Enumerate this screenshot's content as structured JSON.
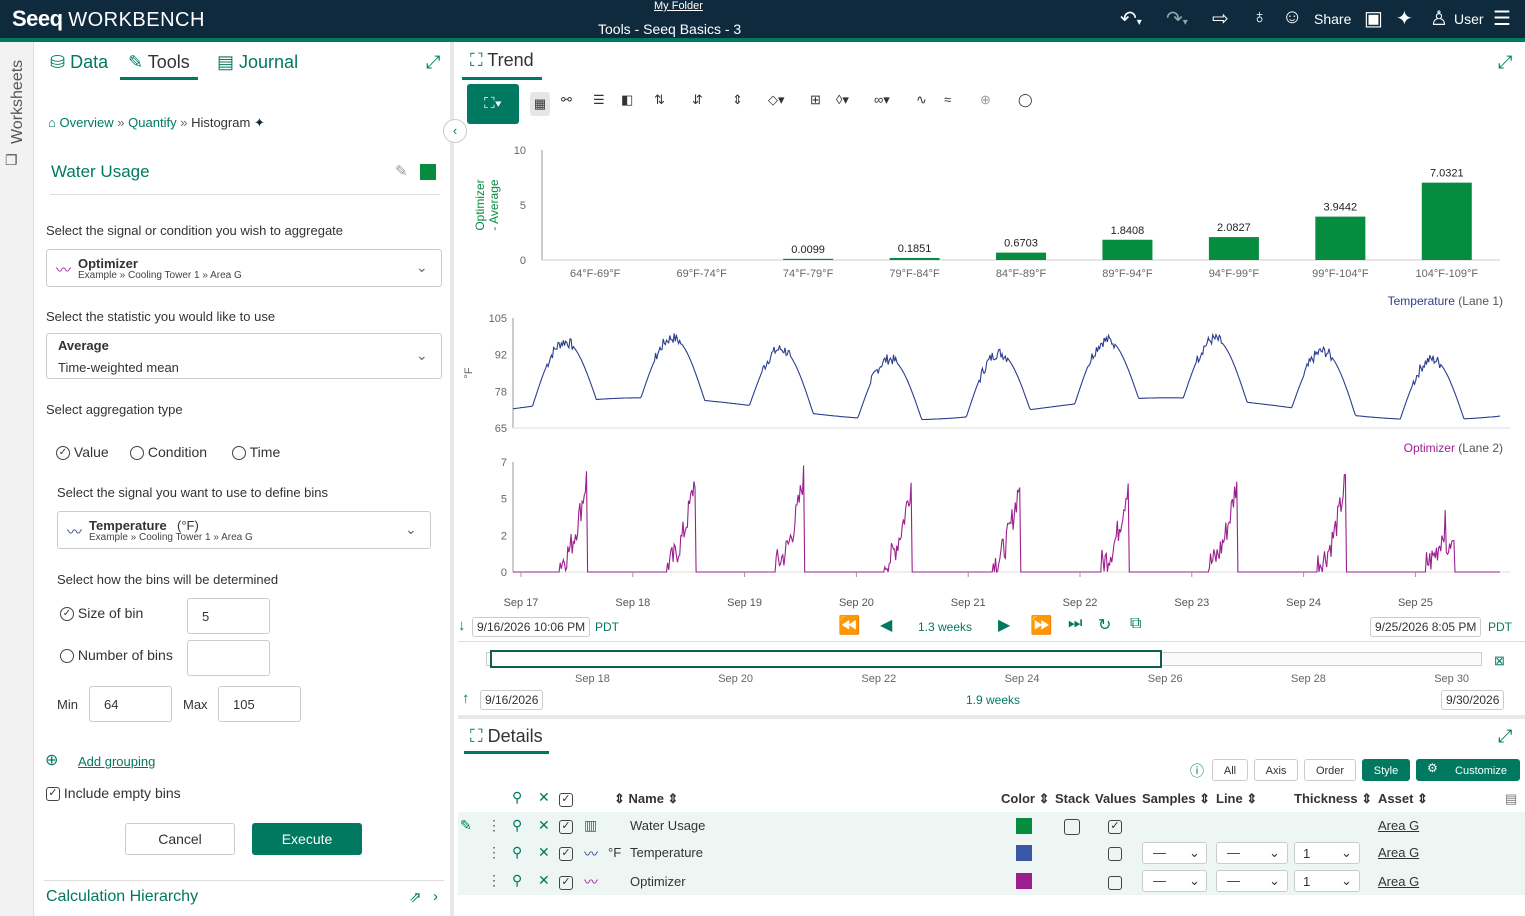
{
  "app": {
    "brand": "Seeq",
    "brand_suffix": "WORKBENCH",
    "folder": "My Folder",
    "title": "Tools - Seeq Basics - 3",
    "share": "Share",
    "user": "User"
  },
  "rail": {
    "label": "Worksheets"
  },
  "left_tabs": [
    "Data",
    "Tools",
    "Journal"
  ],
  "breadcrumb": {
    "overview": "Overview",
    "quantify": "Quantify",
    "current": "Histogram"
  },
  "tool": {
    "name": "Water Usage",
    "signal_prompt": "Select the signal or condition you wish to aggregate",
    "signal_name": "Optimizer",
    "signal_path": "Example » Cooling Tower 1 » Area G",
    "stat_prompt": "Select the statistic you would like to use",
    "stat_name": "Average",
    "stat_desc": "Time-weighted mean",
    "agg_prompt": "Select aggregation type",
    "agg_value": "Value",
    "agg_condition": "Condition",
    "agg_time": "Time",
    "bins_signal_prompt": "Select the signal you want to use to define bins",
    "bins_signal_name": "Temperature",
    "bins_signal_unit": "(°F)",
    "bins_signal_path": "Example » Cooling Tower 1 » Area G",
    "bins_prompt": "Select how the bins will be determined",
    "size_of_bin": "Size of bin",
    "size_value": "5",
    "number_of_bins": "Number of bins",
    "number_value": "",
    "min_label": "Min",
    "min_value": "64",
    "max_label": "Max",
    "max_value": "105",
    "add_grouping": "Add grouping",
    "include_empty": "Include empty bins",
    "cancel": "Cancel",
    "execute": "Execute",
    "hierarchy": "Calculation Hierarchy"
  },
  "trend": {
    "tab": "Trend",
    "details_tab": "Details"
  },
  "chart_data": [
    {
      "type": "bar",
      "ylabel": "Optimizer - Average",
      "ylim": [
        0,
        10
      ],
      "yticks": [
        "10",
        "5",
        "0"
      ],
      "categories": [
        "64°F-69°F",
        "69°F-74°F",
        "74°F-79°F",
        "79°F-84°F",
        "84°F-89°F",
        "89°F-94°F",
        "94°F-99°F",
        "99°F-104°F",
        "104°F-109°F"
      ],
      "values": [
        null,
        null,
        0.0099,
        0.1851,
        0.6703,
        1.8408,
        2.0827,
        3.9442,
        7.0321
      ],
      "labels": [
        "",
        "",
        "0.0099",
        "0.1851",
        "0.6703",
        "1.8408",
        "2.0827",
        "3.9442",
        "7.0321"
      ],
      "color": "#068c3f"
    },
    {
      "type": "line",
      "name": "Temperature",
      "lane": "(Lane 1)",
      "ylabel": "°F",
      "yticks": [
        "105",
        "92",
        "78",
        "65"
      ],
      "ylim": [
        65,
        105
      ],
      "color": "#2c3e8f"
    },
    {
      "type": "line",
      "name": "Optimizer",
      "lane": "(Lane 2)",
      "yticks": [
        "7",
        "5",
        "2",
        "0"
      ],
      "ylim": [
        0,
        7
      ],
      "color": "#9b1f8f"
    }
  ],
  "xaxis": {
    "ticks": [
      "Sep 17",
      "Sep 18",
      "Sep 19",
      "Sep 20",
      "Sep 21",
      "Sep 22",
      "Sep 23",
      "Sep 24",
      "Sep 25"
    ]
  },
  "timebar": {
    "start": "9/16/2026 10:06 PM",
    "tz": "PDT",
    "duration": "1.3 weeks",
    "end": "9/25/2026 8:05 PM",
    "tz2": "PDT"
  },
  "overview": {
    "ticks": [
      "Sep 18",
      "Sep 20",
      "Sep 22",
      "Sep 24",
      "Sep 26",
      "Sep 28",
      "Sep 30"
    ],
    "start": "9/16/2026",
    "duration": "1.9 weeks",
    "end": "9/30/2026"
  },
  "details": {
    "filters": [
      "All",
      "Axis",
      "Order",
      "Style",
      "Customize"
    ],
    "columns": {
      "name": "Name",
      "color": "Color",
      "stack": "Stack",
      "values": "Values",
      "samples": "Samples",
      "line": "Line",
      "thickness": "Thickness",
      "asset": "Asset"
    },
    "rows": [
      {
        "name": "Water Usage",
        "unit": "",
        "color": "#068c3f",
        "asset": "Area G",
        "thickness": ""
      },
      {
        "name": "Temperature",
        "unit": "°F",
        "color": "#3b55a8",
        "asset": "Area G",
        "thickness": "1"
      },
      {
        "name": "Optimizer",
        "unit": "",
        "color": "#9b1f8f",
        "asset": "Area G",
        "thickness": "1"
      }
    ]
  }
}
